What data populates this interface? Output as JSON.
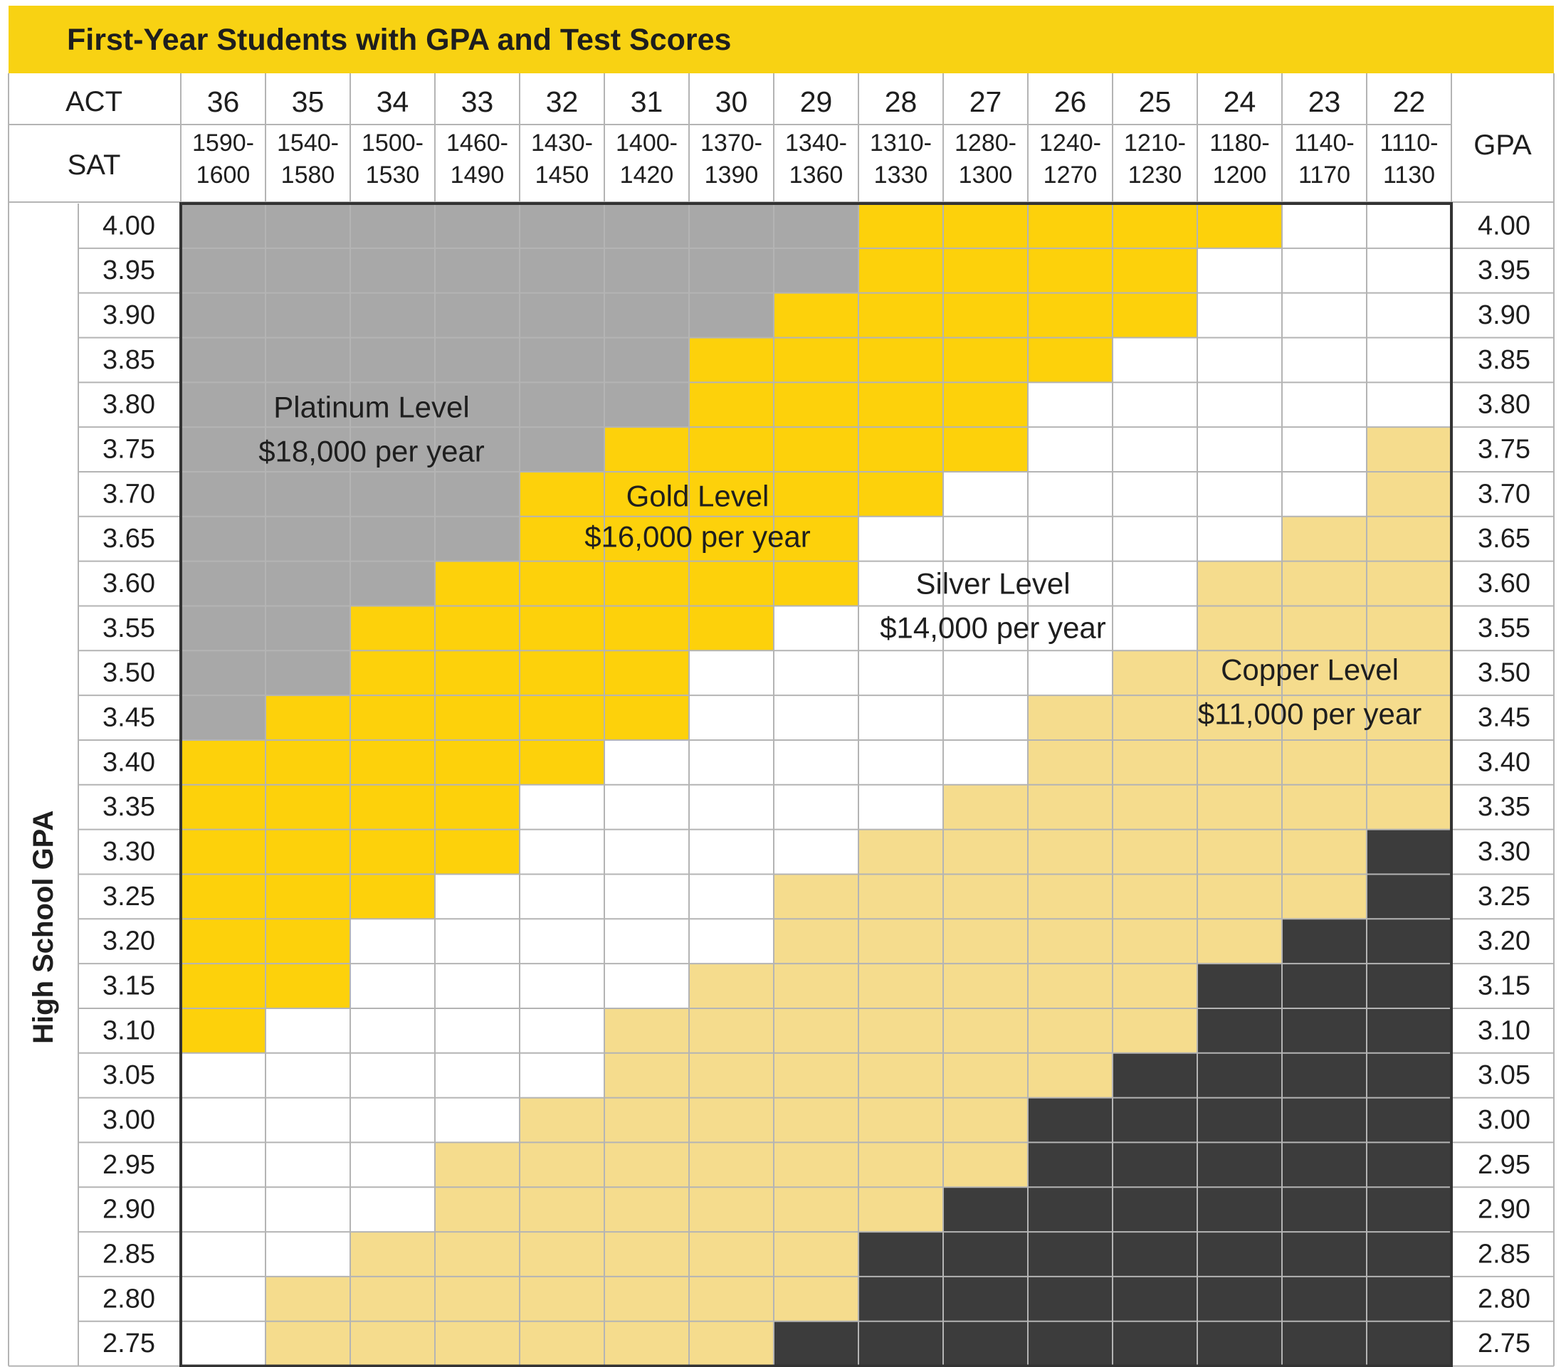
{
  "title": "First-Year Students with GPA and Test Scores",
  "chart_data": {
    "type": "heatmap",
    "title": "First-Year Students with GPA and Test Scores",
    "row_header_left": "ACT",
    "row_header_sat": "SAT",
    "right_header": "GPA",
    "ylabel": "High School GPA",
    "act": [
      "36",
      "35",
      "34",
      "33",
      "32",
      "31",
      "30",
      "29",
      "28",
      "27",
      "26",
      "25",
      "24",
      "23",
      "22"
    ],
    "sat_top": [
      "1590-",
      "1540-",
      "1500-",
      "1460-",
      "1430-",
      "1400-",
      "1370-",
      "1340-",
      "1310-",
      "1280-",
      "1240-",
      "1210-",
      "1180-",
      "1140-",
      "1110-"
    ],
    "sat_bottom": [
      "1600",
      "1580",
      "1530",
      "1490",
      "1450",
      "1420",
      "1390",
      "1360",
      "1330",
      "1300",
      "1270",
      "1230",
      "1200",
      "1170",
      "1130"
    ],
    "gpa": [
      "4.00",
      "3.95",
      "3.90",
      "3.85",
      "3.80",
      "3.75",
      "3.70",
      "3.65",
      "3.60",
      "3.55",
      "3.50",
      "3.45",
      "3.40",
      "3.35",
      "3.30",
      "3.25",
      "3.20",
      "3.15",
      "3.10",
      "3.05",
      "3.00",
      "2.95",
      "2.90",
      "2.85",
      "2.80",
      "2.75"
    ],
    "level_key": {
      "P": "Platinum",
      "G": "Gold",
      "S": "Silver",
      "C": "Copper",
      "N": "None"
    },
    "colors": {
      "P": "#a8a8a8",
      "G": "#fdd10b",
      "S": "#ffffff",
      "C": "#f5dc8d",
      "N": "#3c3c3c",
      "banner": "#f8d213",
      "grid_line": "#b4b4b4",
      "border": "#333333",
      "text": "#1e1e1e"
    },
    "grid": [
      "PPPPPPPPGGGGGSS",
      "PPPPPPPPGGGGSSS",
      "PPPPPPPGGGGGSSS",
      "PPPPPPGGGGGSSSS",
      "PPPPPPGGGGSSSSS",
      "PPPPPGGGGGSSSSC",
      "PPPPGGGGGSSSSSC",
      "PPPPGGGGSSSSSCC",
      "PPPGGGGGSSSSCCC",
      "PPGGGGGSSSSSCCC",
      "PPGGGGSSSSSCCCC",
      "PGGGGGSSSSCCCCC",
      "GGGGGSSSSSCCCCC",
      "GGGGSSSSSCCCCCC",
      "GGGGSSSSCCCCCCN",
      "GGGSSSSCCCCCCCN",
      "GGSSSSSCCCCCCNN",
      "GGSSSSCCCCCCNNN",
      "GSSSSCCCCCCCNNN",
      "SSSSSCCCCCCNNNN",
      "SSSSCCCCCCNNNNN",
      "SSSCCCCCCCNNNNN",
      "SSSCCCCCCNNNNNN",
      "SSCCCCCCNNNNNNN",
      "SCCCCCCCNNNNNNN",
      "SCCCCCCNNNNNNNN"
    ],
    "annotations": [
      {
        "name": "Platinum Level",
        "amount": "$18,000 per year"
      },
      {
        "name": "Gold Level",
        "amount": "$16,000 per year"
      },
      {
        "name": "Silver Level",
        "amount": "$14,000 per year"
      },
      {
        "name": "Copper Level",
        "amount": "$11,000 per year"
      }
    ]
  }
}
